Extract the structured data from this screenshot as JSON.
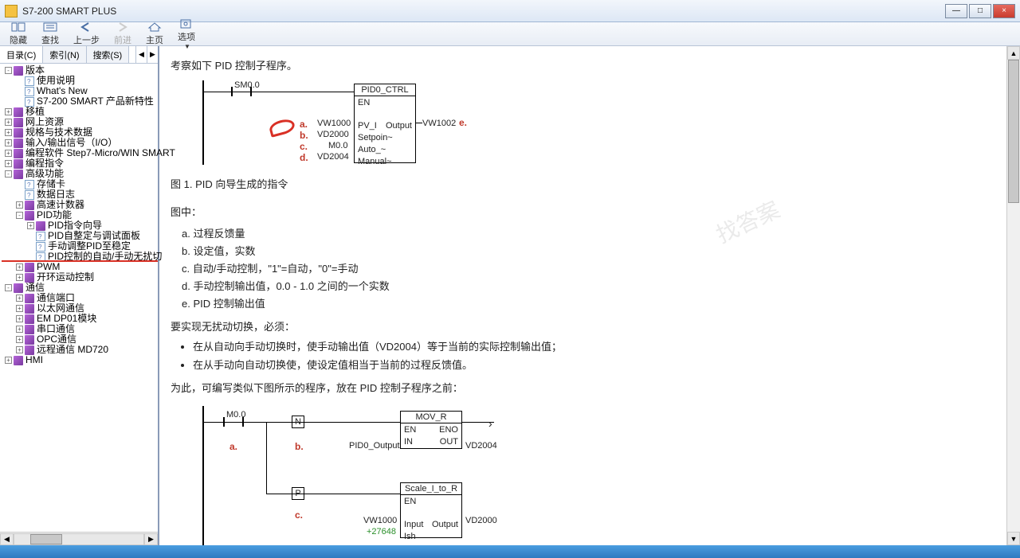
{
  "window": {
    "title": "S7-200 SMART PLUS"
  },
  "winbtns": {
    "min": "—",
    "max": "□",
    "close": "×"
  },
  "toolbar": {
    "hide": "隐藏",
    "find": "查找",
    "prev": "上一步",
    "next": "前进",
    "home": "主页",
    "options": "选项"
  },
  "tabs": {
    "toc": "目录(C)",
    "index": "索引(N)",
    "search": "搜索(S)"
  },
  "tree": {
    "items": [
      {
        "d": 0,
        "e": "-",
        "i": "book",
        "t": "版本"
      },
      {
        "d": 1,
        "e": " ",
        "i": "page",
        "t": "使用说明"
      },
      {
        "d": 1,
        "e": " ",
        "i": "page",
        "t": "What's New"
      },
      {
        "d": 1,
        "e": " ",
        "i": "page",
        "t": "S7-200 SMART 产品新特性"
      },
      {
        "d": 0,
        "e": "+",
        "i": "book",
        "t": "移植"
      },
      {
        "d": 0,
        "e": "+",
        "i": "book",
        "t": "网上资源"
      },
      {
        "d": 0,
        "e": "+",
        "i": "book",
        "t": "规格与技术数据"
      },
      {
        "d": 0,
        "e": "+",
        "i": "book",
        "t": "输入/输出信号（I/O）"
      },
      {
        "d": 0,
        "e": "+",
        "i": "book",
        "t": "编程软件 Step7-Micro/WIN SMART"
      },
      {
        "d": 0,
        "e": "+",
        "i": "book",
        "t": "编程指令"
      },
      {
        "d": 0,
        "e": "-",
        "i": "book",
        "t": "高级功能"
      },
      {
        "d": 1,
        "e": " ",
        "i": "page",
        "t": "存储卡"
      },
      {
        "d": 1,
        "e": " ",
        "i": "page",
        "t": "数据日志"
      },
      {
        "d": 1,
        "e": "+",
        "i": "book",
        "t": "高速计数器"
      },
      {
        "d": 1,
        "e": "-",
        "i": "book",
        "t": "PID功能"
      },
      {
        "d": 2,
        "e": "+",
        "i": "book",
        "t": "PID指令向导"
      },
      {
        "d": 2,
        "e": " ",
        "i": "page",
        "t": "PID自整定与调试面板"
      },
      {
        "d": 2,
        "e": " ",
        "i": "page",
        "t": "手动调整PID至稳定"
      },
      {
        "d": 2,
        "e": " ",
        "i": "page",
        "t": "PID控制的自动/手动无扰切",
        "hl": true
      },
      {
        "d": 1,
        "e": "+",
        "i": "book",
        "t": "PWM"
      },
      {
        "d": 1,
        "e": "+",
        "i": "book",
        "t": "开环运动控制"
      },
      {
        "d": 0,
        "e": "-",
        "i": "book",
        "t": "通信"
      },
      {
        "d": 1,
        "e": "+",
        "i": "book",
        "t": "通信端口"
      },
      {
        "d": 1,
        "e": "+",
        "i": "book",
        "t": "以太网通信"
      },
      {
        "d": 1,
        "e": "+",
        "i": "book",
        "t": "EM DP01模块"
      },
      {
        "d": 1,
        "e": "+",
        "i": "book",
        "t": "串口通信"
      },
      {
        "d": 1,
        "e": "+",
        "i": "book",
        "t": "OPC通信"
      },
      {
        "d": 1,
        "e": "+",
        "i": "book",
        "t": "远程通信 MD720"
      },
      {
        "d": 0,
        "e": "+",
        "i": "book",
        "t": "HMI"
      }
    ]
  },
  "content": {
    "intro": "考察如下 PID 控制子程序。",
    "fig1": {
      "sm": "SM0.0",
      "fb_title": "PID0_CTRL",
      "en": "EN",
      "rows": [
        {
          "l": "a.",
          "in": "VW1000",
          "pin": "PV_I",
          "out": "Output",
          "outv": "VW1002",
          "r": "e."
        },
        {
          "l": "b.",
          "in": "VD2000",
          "pin": "Setpoin~"
        },
        {
          "l": "c.",
          "in": "M0.0",
          "pin": "Auto_~"
        },
        {
          "l": "d.",
          "in": "VD2004",
          "pin": "Manual~"
        }
      ]
    },
    "caption1": "图 1. PID 向导生成的指令",
    "inpic": "图中：",
    "legend": {
      "a": "a.  过程反馈量",
      "b": "b.  设定值，实数",
      "c": "c.  自动/手动控制，\"1\"=自动，\"0\"=手动",
      "d": "d.  手动控制输出值，0.0 - 1.0 之间的一个实数",
      "e": "e.  PID 控制输出值"
    },
    "req": "要实现无扰动切换，必须：",
    "bullet1": "在从自动向手动切换时，使手动输出值（VD2004）等于当前的实际控制输出值；",
    "bullet2": "在从手动向自动切换使，使设定值相当于当前的过程反馈值。",
    "para2": "为此，可编写类似下图所示的程序，放在 PID 控制子程序之前：",
    "fig2": {
      "m0": "M0.0",
      "n": "N",
      "p": "P",
      "mov": "MOV_R",
      "en": "EN",
      "eno": "ENO",
      "pidout": "PID0_Output",
      "in": "IN",
      "out": "OUT",
      "vd2004": "VD2004",
      "scale": "Scale_I_to_R",
      "vw1000": "VW1000",
      "input": "Input",
      "output": "Output",
      "vd2000": "VD2000",
      "plus": "+27648",
      "ish": "Ish",
      "la": "a.",
      "lb": "b.",
      "lc": "c."
    },
    "watermark": "找答案"
  }
}
